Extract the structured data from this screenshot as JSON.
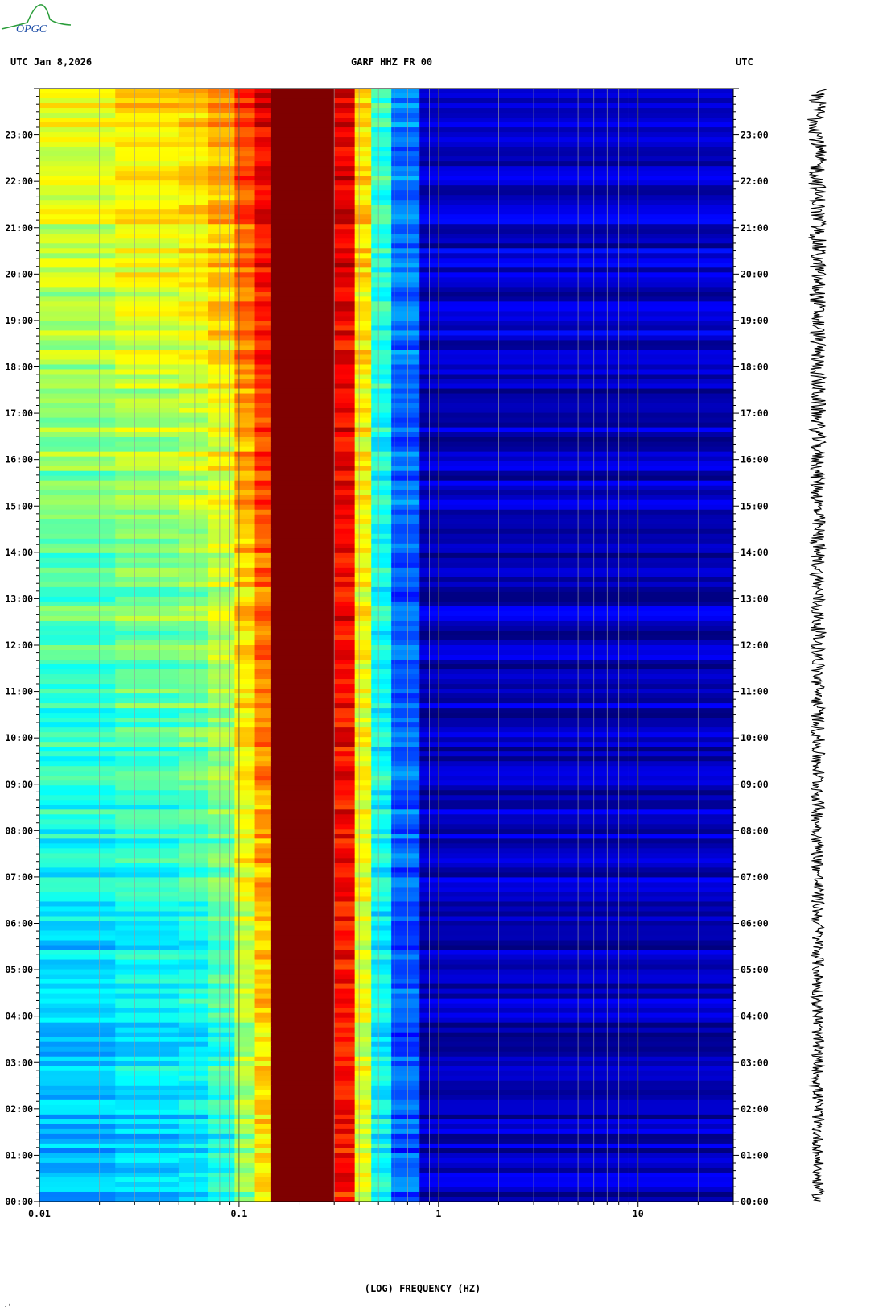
{
  "header": {
    "left": "UTC  Jan 8,2026",
    "center": "GARF HHZ FR 00",
    "right": "UTC"
  },
  "logo": {
    "text": "OPGC"
  },
  "footer_mark": "·‘",
  "chart_data": {
    "type": "heatmap",
    "title": "GARF HHZ FR 00",
    "date": "Jan 8,2026",
    "xlabel": "(LOG) FREQUENCY (HZ)",
    "x_scale": "log",
    "xlim": [
      0.01,
      30
    ],
    "x_ticks": [
      {
        "value": 0.01,
        "label": "0.01"
      },
      {
        "value": 0.1,
        "label": "0.1"
      },
      {
        "value": 1,
        "label": "1"
      },
      {
        "value": 10,
        "label": "10"
      }
    ],
    "ylabel_left": "UTC",
    "ylabel_right": "UTC",
    "ylim_hours": [
      0,
      24
    ],
    "y_ticks": [
      "00:00",
      "01:00",
      "02:00",
      "03:00",
      "04:00",
      "05:00",
      "06:00",
      "07:00",
      "08:00",
      "09:00",
      "10:00",
      "11:00",
      "12:00",
      "13:00",
      "14:00",
      "15:00",
      "16:00",
      "17:00",
      "18:00",
      "19:00",
      "20:00",
      "21:00",
      "22:00",
      "23:00"
    ],
    "colormap": [
      "#00007f",
      "#0000ff",
      "#0080ff",
      "#00ffff",
      "#80ff80",
      "#ffff00",
      "#ff8000",
      "#ff0000",
      "#7f0000"
    ],
    "frequency_bands": [
      {
        "f_min": 0.01,
        "f_max": 0.024,
        "level_start": 0.62,
        "level_end": 0.27
      },
      {
        "f_min": 0.024,
        "f_max": 0.05,
        "level_start": 0.66,
        "level_end": 0.3
      },
      {
        "f_min": 0.05,
        "f_max": 0.07,
        "level_start": 0.68,
        "level_end": 0.32
      },
      {
        "f_min": 0.07,
        "f_max": 0.095,
        "level_start": 0.73,
        "level_end": 0.37
      },
      {
        "f_min": 0.095,
        "f_max": 0.12,
        "level_start": 0.82,
        "level_end": 0.5
      },
      {
        "f_min": 0.12,
        "f_max": 0.145,
        "level_start": 0.9,
        "level_end": 0.62
      },
      {
        "f_min": 0.145,
        "f_max": 0.3,
        "level_start": 1.0,
        "level_end": 1.0
      },
      {
        "f_min": 0.3,
        "f_max": 0.38,
        "level_start": 0.9,
        "level_end": 0.85
      },
      {
        "f_min": 0.38,
        "f_max": 0.46,
        "level_start": 0.66,
        "level_end": 0.58
      },
      {
        "f_min": 0.46,
        "f_max": 0.58,
        "level_start": 0.42,
        "level_end": 0.36
      },
      {
        "f_min": 0.58,
        "f_max": 0.8,
        "level_start": 0.24,
        "level_end": 0.2
      },
      {
        "f_min": 0.8,
        "f_max": 30,
        "level_start": 0.07,
        "level_end": 0.05
      }
    ]
  }
}
